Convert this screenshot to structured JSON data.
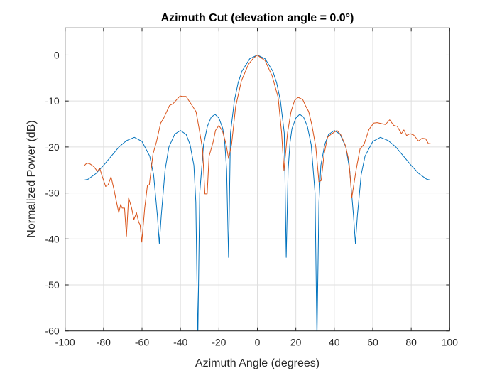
{
  "chart_data": {
    "type": "line",
    "title": "Azimuth Cut (elevation angle = 0.0°)",
    "xlabel": "Azimuth Angle (degrees)",
    "ylabel": "Normalized Power (dB)",
    "xlim": [
      -100,
      100
    ],
    "ylim": [
      -60,
      5.9
    ],
    "xticks": [
      "-100",
      "-80",
      "-60",
      "-40",
      "-20",
      "0",
      "20",
      "40",
      "60",
      "80",
      "100"
    ],
    "yticks": [
      "0",
      "-10",
      "-20",
      "-30",
      "-40",
      "-50",
      "-60"
    ],
    "grid": true,
    "legend": "none",
    "series": [
      {
        "color": "#0072BD",
        "x": [
          -90,
          -88,
          -84,
          -80,
          -76,
          -72,
          -68,
          -64,
          -60,
          -56,
          -54,
          -52,
          -51,
          -50,
          -48,
          -46,
          -43,
          -40,
          -37,
          -35,
          -33,
          -32,
          -31,
          -30,
          -28,
          -26,
          -24,
          -22,
          -20,
          -18,
          -17,
          -16,
          -15,
          -14,
          -12,
          -10,
          -8,
          -4,
          0,
          4,
          8,
          10,
          12,
          14,
          15,
          16,
          17,
          18,
          20,
          22,
          24,
          26,
          28,
          30,
          31,
          32,
          33,
          35,
          37,
          40,
          43,
          46,
          48,
          50,
          51,
          52,
          54,
          56,
          60,
          64,
          68,
          72,
          76,
          80,
          84,
          88,
          90
        ],
        "y": [
          -27.2,
          -27,
          -25.8,
          -24,
          -22,
          -20,
          -18.6,
          -17.9,
          -18.8,
          -22,
          -26,
          -35,
          -41,
          -35,
          -25,
          -20,
          -17.2,
          -16.4,
          -17.3,
          -19.5,
          -24,
          -32,
          -62,
          -30,
          -19.5,
          -15.5,
          -13.5,
          -12.9,
          -13.7,
          -16,
          -19,
          -25,
          -44,
          -17,
          -10,
          -6,
          -3.5,
          -0.8,
          0,
          -0.8,
          -3.5,
          -6,
          -10,
          -17,
          -44,
          -25,
          -19,
          -16,
          -13.7,
          -12.9,
          -13.5,
          -15.5,
          -19.5,
          -30,
          -62,
          -32,
          -24,
          -19.5,
          -17.3,
          -16.4,
          -17.2,
          -20,
          -25,
          -35,
          -41,
          -35,
          -26,
          -22,
          -18.8,
          -17.9,
          -18.6,
          -20,
          -22,
          -24,
          -25.8,
          -27,
          -27.2
        ]
      },
      {
        "color": "#D95319",
        "x": [
          -89.9,
          -88.7,
          -87,
          -85,
          -83.2,
          -82,
          -80.7,
          -78.9,
          -77.6,
          -76.1,
          -74.6,
          -73.4,
          -72.1,
          -71.1,
          -70.3,
          -69.1,
          -68.1,
          -67,
          -65.4,
          -64.2,
          -62.9,
          -61.7,
          -61,
          -60.1,
          -58.6,
          -57.2,
          -56.2,
          -54.3,
          -52.5,
          -50.3,
          -48.8,
          -45.7,
          -43.9,
          -40.2,
          -39,
          -37.1,
          -34.7,
          -31.9,
          -30.4,
          -28.5,
          -27.3,
          -26.1,
          -25.1,
          -23,
          -21.8,
          -20,
          -18.1,
          -16.3,
          -15,
          -13.4,
          -11.3,
          -8.3,
          -4.6,
          -2.1,
          0,
          1.5,
          4,
          7.7,
          10.8,
          12.6,
          13.8,
          15.7,
          17.5,
          19.3,
          21.2,
          23.6,
          25.1,
          26.7,
          28.3,
          30.4,
          32,
          33.2,
          34.7,
          36.5,
          38.4,
          41.4,
          43.3,
          45.7,
          47.6,
          49.1,
          51.3,
          53.4,
          55.5,
          58,
          60.5,
          62.3,
          66.6,
          68.8,
          70.9,
          72.7,
          74.9,
          76.2,
          77.6,
          79.5,
          81.3,
          83.8,
          85.6,
          87.5,
          89,
          90
        ],
        "y": [
          -24,
          -23.5,
          -23.7,
          -24.3,
          -25.3,
          -24.6,
          -26.4,
          -28.6,
          -28.2,
          -26.5,
          -29.2,
          -31.7,
          -34.3,
          -32.5,
          -33.3,
          -33.3,
          -39.4,
          -31,
          -33.3,
          -35.8,
          -34.3,
          -36.4,
          -36.9,
          -40.7,
          -33.3,
          -28.4,
          -28.2,
          -21.5,
          -18.9,
          -14.8,
          -13.8,
          -11,
          -10.6,
          -8.9,
          -9,
          -9,
          -10.5,
          -12.3,
          -15.8,
          -20.5,
          -30.2,
          -30.2,
          -22,
          -18.9,
          -16.4,
          -15.3,
          -16.6,
          -19.4,
          -22.5,
          -19.4,
          -11.2,
          -5.6,
          -2,
          -0.7,
          0,
          -0.5,
          -1.2,
          -4.6,
          -9.2,
          -16.9,
          -25.1,
          -16.9,
          -12.3,
          -9.9,
          -9.2,
          -9.7,
          -11.1,
          -12.3,
          -15.1,
          -20,
          -27.6,
          -27.3,
          -21.5,
          -17.9,
          -17.2,
          -16.4,
          -17.3,
          -19.6,
          -23,
          -31,
          -25.1,
          -20.4,
          -19.4,
          -16.2,
          -14.8,
          -14.7,
          -15.1,
          -14.1,
          -15.3,
          -15.5,
          -17.1,
          -16.3,
          -17.5,
          -17.1,
          -17.4,
          -18.7,
          -18.1,
          -18.2,
          -19.3,
          -19.2
        ]
      }
    ]
  }
}
